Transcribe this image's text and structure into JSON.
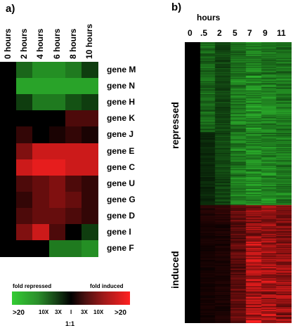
{
  "panel_a": {
    "label": "a)",
    "columns": [
      "0 hours",
      "2 hours",
      "4 hours",
      "6 hours",
      "8 hours",
      "10 hours"
    ],
    "rows": [
      {
        "gene": "gene M",
        "values": [
          0,
          -2.5,
          -3.5,
          -3.5,
          -3,
          -1.5
        ]
      },
      {
        "gene": "gene N",
        "values": [
          0,
          -4,
          -4,
          -4,
          -4,
          -4
        ]
      },
      {
        "gene": "gene H",
        "values": [
          0,
          -1.5,
          -3,
          -3,
          -2,
          -1.5
        ]
      },
      {
        "gene": "gene K",
        "values": [
          0,
          0,
          0,
          0,
          1.5,
          1.5
        ]
      },
      {
        "gene": "gene J",
        "values": [
          0,
          1,
          0,
          0.5,
          1,
          0.5
        ]
      },
      {
        "gene": "gene E",
        "values": [
          0,
          2.5,
          4,
          4,
          4,
          4
        ]
      },
      {
        "gene": "gene C",
        "values": [
          0,
          4,
          4.5,
          4.5,
          4,
          4
        ]
      },
      {
        "gene": "gene U",
        "values": [
          0,
          1.5,
          2,
          2.5,
          1.5,
          1
        ]
      },
      {
        "gene": "gene G",
        "values": [
          0,
          1,
          2,
          2.5,
          2,
          1
        ]
      },
      {
        "gene": "gene D",
        "values": [
          0,
          1.5,
          2,
          2,
          1.5,
          1
        ]
      },
      {
        "gene": "gene I",
        "values": [
          0,
          2.5,
          4,
          1.5,
          0,
          -1.5
        ]
      },
      {
        "gene": "gene F",
        "values": [
          0,
          0,
          0,
          -3,
          -3,
          -3.5
        ]
      }
    ]
  },
  "legend": {
    "left_title": "fold repressed",
    "right_title": "fold induced",
    "ticks": [
      ">20",
      "10X",
      "3X",
      "I",
      "3X",
      "10X",
      ">20"
    ],
    "center_label": "1:1"
  },
  "panel_b": {
    "label": "b)",
    "hours_label": "hours",
    "times": [
      "0",
      ".5",
      "2",
      "5",
      "7",
      "9",
      "11"
    ],
    "repressed_label": "repressed",
    "induced_label": "induced"
  },
  "colors": {
    "repressed": "#33cc33",
    "induced": "#ff2020",
    "neutral": "#000000"
  }
}
